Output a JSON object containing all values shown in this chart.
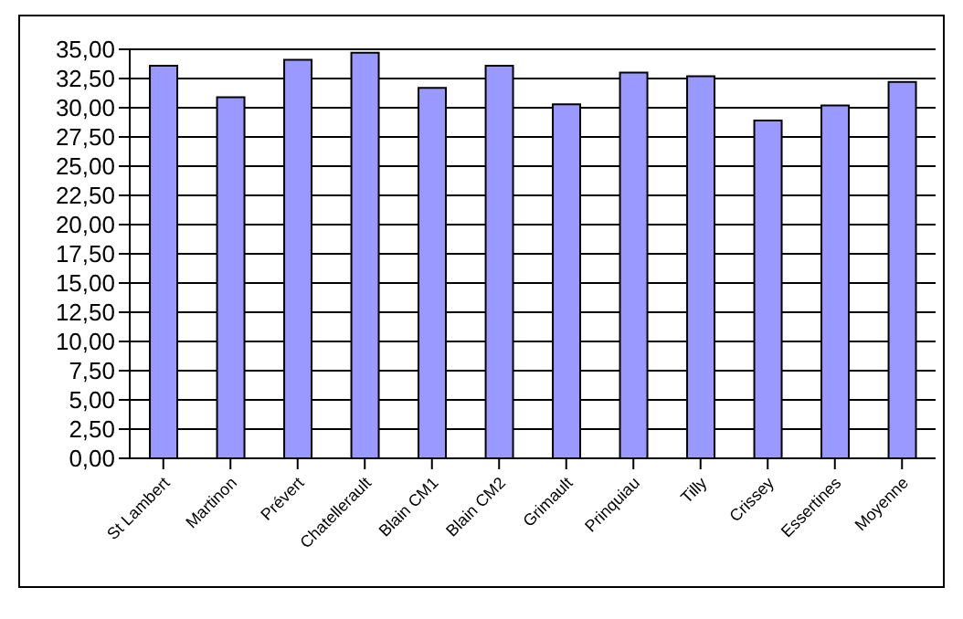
{
  "chart_data": {
    "type": "bar",
    "categories": [
      "St Lambert",
      "Martinon",
      "Prévert",
      "Chatellerault",
      "Blain CM1",
      "Blain CM2",
      "Grimault",
      "Prinquiau",
      "Tilly",
      "Crissey",
      "Essertines",
      "Moyenne"
    ],
    "values": [
      33.6,
      30.9,
      34.1,
      34.7,
      31.7,
      33.6,
      30.3,
      33.0,
      32.7,
      28.9,
      30.2,
      32.2
    ],
    "color": "#9999ff",
    "ylim": [
      0,
      35
    ],
    "yticks": [
      {
        "value": 0,
        "label": "0,00"
      },
      {
        "value": 2.5,
        "label": "2,50"
      },
      {
        "value": 5,
        "label": "5,00"
      },
      {
        "value": 7.5,
        "label": "7,50"
      },
      {
        "value": 10,
        "label": "10,00"
      },
      {
        "value": 12.5,
        "label": "12,50"
      },
      {
        "value": 15,
        "label": "15,00"
      },
      {
        "value": 17.5,
        "label": "17,50"
      },
      {
        "value": 20,
        "label": "20,00"
      },
      {
        "value": 22.5,
        "label": "22,50"
      },
      {
        "value": 25,
        "label": "25,00"
      },
      {
        "value": 27.5,
        "label": "27,50"
      },
      {
        "value": 30,
        "label": "30,00"
      },
      {
        "value": 32.5,
        "label": "32,50"
      },
      {
        "value": 35,
        "label": "35,00"
      }
    ],
    "grid": "y"
  }
}
